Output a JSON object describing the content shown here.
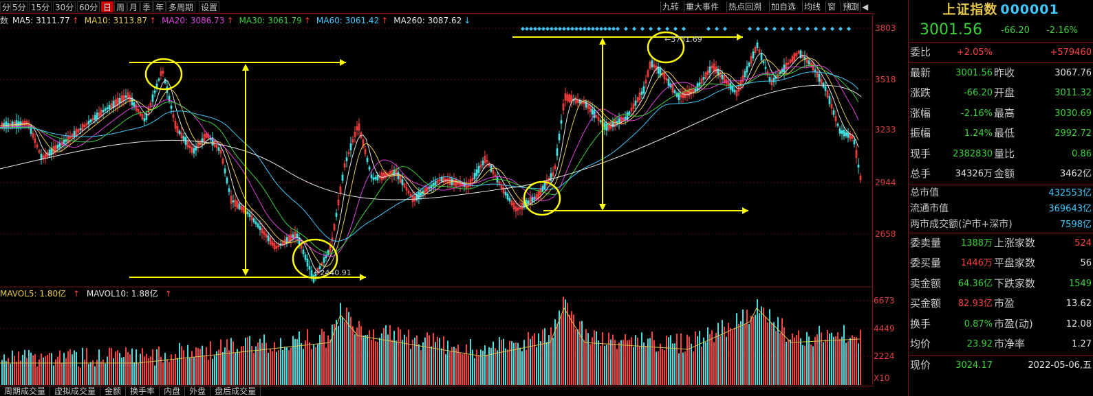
{
  "toolbar": {
    "periods": [
      "分",
      "5分",
      "15分",
      "30分",
      "60分",
      "日",
      "周",
      "月",
      "季",
      "年",
      "多周期",
      "设置"
    ],
    "active_period": "日",
    "tools": [
      "九转",
      "重大事件",
      "热点回溯",
      "加自选",
      "均线",
      "窗",
      "预测"
    ]
  },
  "ma": {
    "prefix": "数",
    "items": [
      {
        "text": "MA5: 3111.77",
        "arrow": "↑",
        "color": "#e6e6e6"
      },
      {
        "text": "MA10: 3113.87",
        "arrow": "↑",
        "color": "#e6c94c"
      },
      {
        "text": "MA20: 3086.73",
        "arrow": "↑",
        "color": "#e040e0"
      },
      {
        "text": "MA30: 3061.79",
        "arrow": "↑",
        "color": "#3bd13b"
      },
      {
        "text": "MA60: 3061.42",
        "arrow": "↑",
        "color": "#40c8ff"
      },
      {
        "text": "MA260: 3087.62",
        "arrow": "↓",
        "color": "#e6e6e6"
      }
    ]
  },
  "volume": {
    "mavol5": "MAVOL5: 1.80亿",
    "mavol10": "MAVOL10: 1.88亿",
    "arrow": "↑"
  },
  "price_axis": [
    "3803",
    "3518",
    "3233",
    "2944",
    "2658"
  ],
  "volume_axis": [
    "6673",
    "4449",
    "2224",
    "X10"
  ],
  "annotations": {
    "high_label": "3731.69",
    "low_label": "2440.91"
  },
  "bottom_tabs": [
    "周期成交量",
    "虚拟成交量",
    "金额",
    "换手率",
    "内盘",
    "外盘",
    "盘后成交量"
  ],
  "panel": {
    "title": "上证指数",
    "code": "000001",
    "price": "3001.56",
    "change": "-66.20",
    "change_pct": "-2.16%",
    "weibi": {
      "label": "委比",
      "pct": "+2.05%",
      "diff": "+579460"
    },
    "rows": [
      {
        "l1": "最新",
        "v1": "3001.56",
        "c1": "green",
        "l2": "昨收",
        "v2": "3067.76",
        "c2": "white"
      },
      {
        "l1": "涨跌",
        "v1": "-66.20",
        "c1": "green",
        "l2": "开盘",
        "v2": "3011.32",
        "c2": "green"
      },
      {
        "l1": "涨幅",
        "v1": "-2.16%",
        "c1": "green",
        "l2": "最高",
        "v2": "3030.69",
        "c2": "green"
      },
      {
        "l1": "振幅",
        "v1": "1.24%",
        "c1": "green",
        "l2": "最低",
        "v2": "2992.72",
        "c2": "green"
      },
      {
        "l1": "现手",
        "v1": "2382830",
        "c1": "green",
        "l2": "量比",
        "v2": "0.86",
        "c2": "green"
      },
      {
        "l1": "总手",
        "v1": "34326万",
        "c1": "white",
        "l2": "金额",
        "v2": "3462亿",
        "c2": "white"
      }
    ],
    "market": [
      {
        "label": "总市值",
        "value": "432553亿"
      },
      {
        "label": "流通市值",
        "value": "369643亿"
      },
      {
        "label": "两市成交额(沪市+深市)",
        "value": "7598亿"
      }
    ],
    "rows2": [
      {
        "l1": "委卖量",
        "v1": "1388万",
        "c1": "green",
        "l2": "上涨家数",
        "v2": "524",
        "c2": "red"
      },
      {
        "l1": "委买量",
        "v1": "1446万",
        "c1": "red",
        "l2": "平盘家数",
        "v2": "56",
        "c2": "white"
      },
      {
        "l1": "卖金额",
        "v1": "64.36亿",
        "c1": "green",
        "l2": "下跌家数",
        "v2": "1549",
        "c2": "green"
      },
      {
        "l1": "买金额",
        "v1": "82.93亿",
        "c1": "red",
        "l2": "市盈",
        "v2": "13.62",
        "c2": "white"
      },
      {
        "l1": "换手",
        "v1": "0.87%",
        "c1": "green",
        "l2": "市盈(动)",
        "v2": "12.08",
        "c2": "white"
      },
      {
        "l1": "均价",
        "v1": "23.92",
        "c1": "green",
        "l2": "市净率",
        "v2": "1.27",
        "c2": "white"
      }
    ],
    "footer": {
      "label": "现价",
      "price": "3024.17",
      "date": "2022-05-06,五"
    }
  },
  "colors": {
    "up": "#ff4040",
    "down": "#40e0e0",
    "annotation": "#ffff00",
    "divider": "#7a1010"
  }
}
